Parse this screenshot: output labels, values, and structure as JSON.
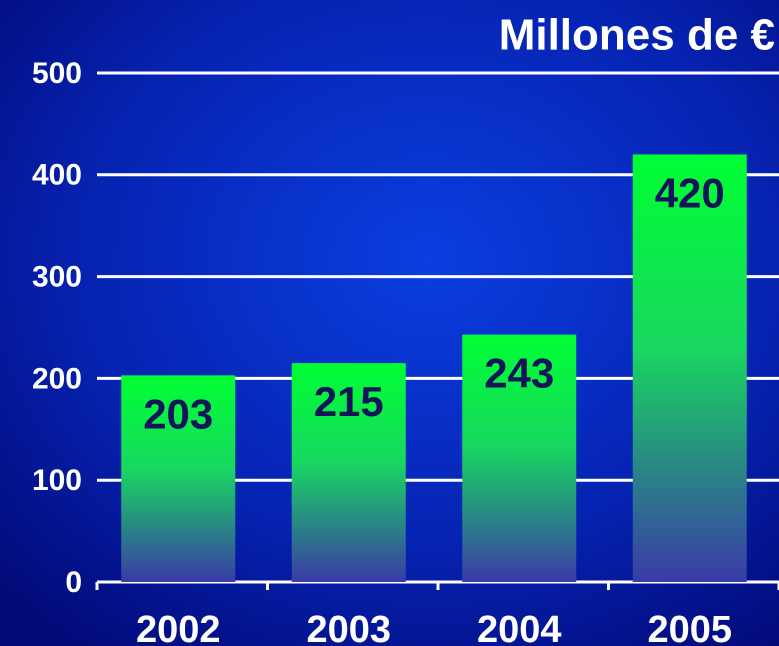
{
  "chart_data": {
    "type": "bar",
    "title": "Millones de €",
    "categories": [
      "2002",
      "2003",
      "2004",
      "2005"
    ],
    "values": [
      203,
      215,
      243,
      420
    ],
    "color": "#00ff33",
    "ylim": [
      0,
      500
    ],
    "yticks": [
      0,
      100,
      200,
      300,
      400,
      500
    ],
    "grid": true
  }
}
